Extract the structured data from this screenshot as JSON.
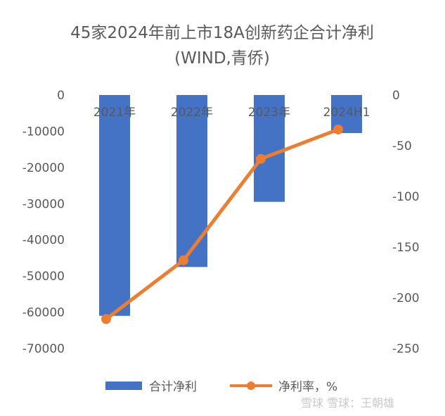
{
  "chart_data": {
    "type": "bar",
    "title": "45家2024年前上市18A创新药企合计净利",
    "subtitle": "(WIND,青侨)",
    "categories": [
      "2021年",
      "2022年",
      "2023年",
      "2024H1"
    ],
    "series": [
      {
        "name": "合计净利",
        "type": "bar",
        "axis": "left",
        "color": "#4472C4",
        "values": [
          -61000,
          -47500,
          -29500,
          -10500
        ]
      },
      {
        "name": "净利率，%",
        "type": "line",
        "axis": "right",
        "color": "#ED7D31",
        "values": [
          -221,
          -163,
          -63,
          -34
        ]
      }
    ],
    "y_left": {
      "lim": [
        -70000,
        0
      ],
      "ticks": [
        "0",
        "-10000",
        "-20000",
        "-30000",
        "-40000",
        "-50000",
        "-60000",
        "-70000"
      ]
    },
    "y_right": {
      "lim": [
        -250,
        0
      ],
      "ticks": [
        "0",
        "-50",
        "-100",
        "-150",
        "-200",
        "-250"
      ]
    },
    "grid": false,
    "legend": "bottom"
  },
  "watermark": "雪球 雪球：王朝雄"
}
